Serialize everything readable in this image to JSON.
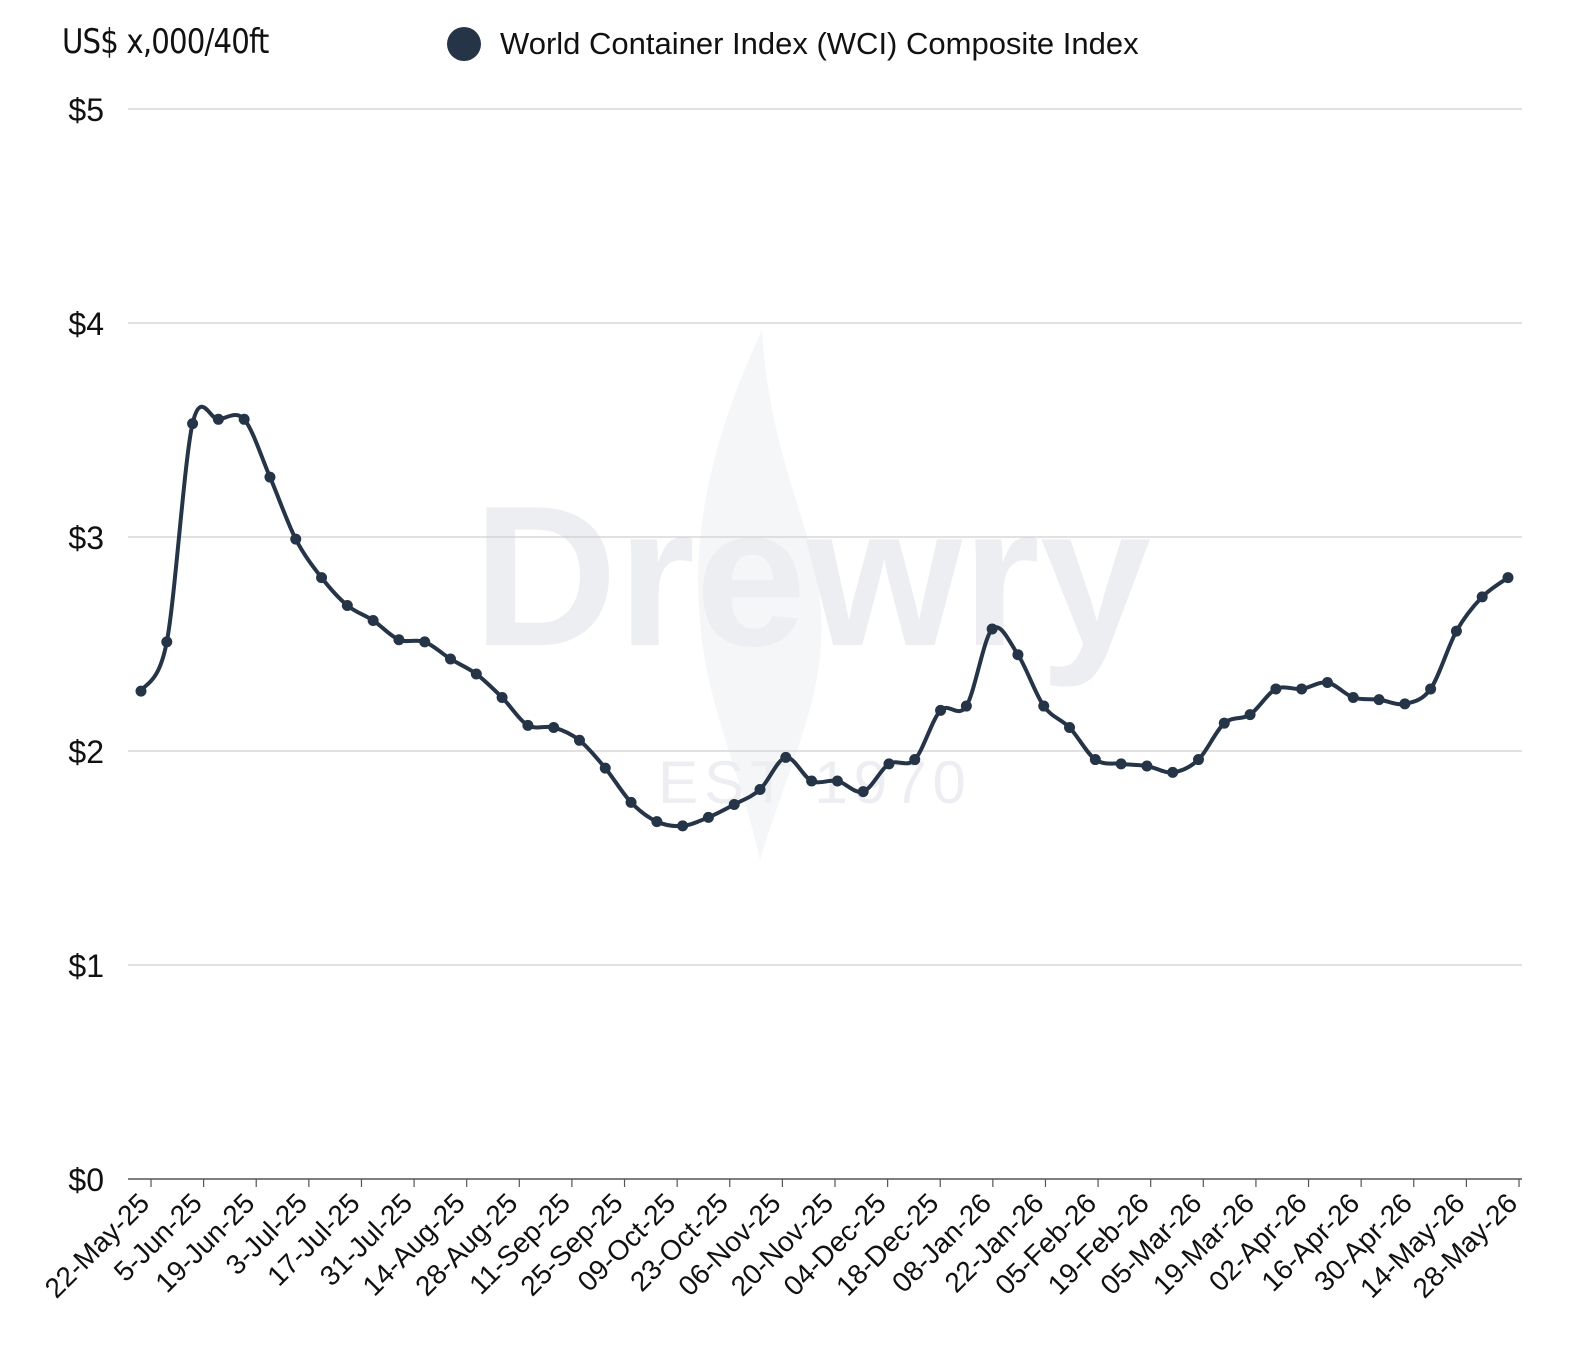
{
  "chart_data": {
    "type": "line",
    "unit_label": "US$ x,000/40ft",
    "y_tick_labels": [
      "$0",
      "$1",
      "$2",
      "$3",
      "$4",
      "$5"
    ],
    "ylim": [
      0,
      5
    ],
    "grid": true,
    "legend_position": "top",
    "x_tick_labels": [
      "22-May-25",
      "5-Jun-25",
      "19-Jun-25",
      "3-Jul-25",
      "17-Jul-25",
      "31-Jul-25",
      "14-Aug-25",
      "28-Aug-25",
      "11-Sep-25",
      "25-Sep-25",
      "09-Oct-25",
      "23-Oct-25",
      "06-Nov-25",
      "20-Nov-25",
      "04-Dec-25",
      "18-Dec-25",
      "08-Jan-26",
      "22-Jan-26",
      "05-Feb-26",
      "19-Feb-26",
      "05-Mar-26",
      "19-Mar-26",
      "02-Apr-26",
      "16-Apr-26",
      "30-Apr-26",
      "14-May-26",
      "28-May-26"
    ],
    "series": [
      {
        "name": "World Container Index (WCI) Composite Index",
        "color": "#253447",
        "values": [
          2.28,
          2.51,
          3.53,
          3.55,
          3.55,
          3.28,
          2.99,
          2.81,
          2.68,
          2.61,
          2.52,
          2.51,
          2.43,
          2.36,
          2.25,
          2.12,
          2.11,
          2.05,
          1.92,
          1.76,
          1.67,
          1.65,
          1.69,
          1.75,
          1.82,
          1.97,
          1.86,
          1.86,
          1.81,
          1.94,
          1.96,
          2.19,
          2.21,
          2.57,
          2.45,
          2.21,
          2.11,
          1.96,
          1.94,
          1.93,
          1.9,
          1.96,
          2.13,
          2.17,
          2.29,
          2.29,
          2.32,
          2.25,
          2.24,
          2.22,
          2.29,
          2.56,
          2.72,
          2.81
        ]
      }
    ]
  },
  "watermark": {
    "brand": "Drewry",
    "established": "EST 1970",
    "color": "#eceef2"
  },
  "colors": {
    "gridline": "#cfcfcf",
    "axis_line": "#555555",
    "text": "#111111"
  }
}
